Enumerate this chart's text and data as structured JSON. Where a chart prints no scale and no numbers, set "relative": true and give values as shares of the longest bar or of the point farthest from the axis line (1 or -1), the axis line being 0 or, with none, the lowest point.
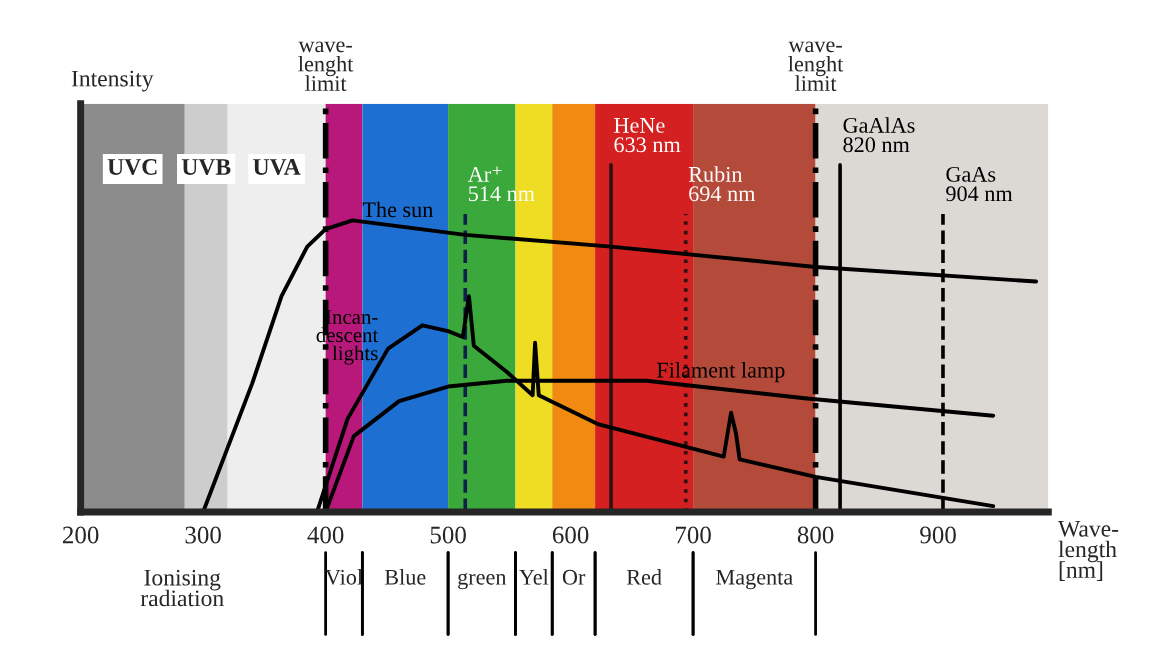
{
  "chart_data": {
    "type": "line",
    "relative": true,
    "xlabel": "Wave-\nlength\n[nm]",
    "xlim": [
      200,
      990
    ],
    "xticks": [
      200,
      300,
      400,
      500,
      600,
      700,
      800,
      900
    ],
    "series": [
      {
        "name": "The sun",
        "color": "#000000",
        "x": [
          300,
          340,
          364,
          385,
          400,
          422,
          514,
          633,
          800,
          980
        ],
        "values": [
          0,
          0.44,
          0.74,
          0.91,
          0.97,
          1.0,
          0.95,
          0.91,
          0.84,
          0.79
        ]
      },
      {
        "name": "Incan-\ndescent\nlights",
        "color": "#000000",
        "x": [
          393,
          418,
          451,
          479,
          500,
          512,
          517,
          521,
          548,
          569,
          571,
          574,
          623,
          725,
          731,
          735,
          738,
          800,
          945
        ],
        "values": [
          0,
          0.32,
          0.56,
          0.64,
          0.62,
          0.6,
          0.74,
          0.57,
          0.48,
          0.4,
          0.58,
          0.4,
          0.3,
          0.19,
          0.34,
          0.27,
          0.18,
          0.12,
          0.02
        ]
      },
      {
        "name": "Filament lamp",
        "color": "#000000",
        "x": [
          400,
          423,
          460,
          500,
          548,
          662,
          791,
          945
        ],
        "values": [
          0,
          0.26,
          0.38,
          0.43,
          0.45,
          0.45,
          0.39,
          0.33
        ]
      }
    ],
    "ref_lines": [
      {
        "axis": "x",
        "value": 400,
        "label": "wave-\nlenght\nlimit",
        "line_style": "dashdot",
        "color": "#000000"
      },
      {
        "axis": "x",
        "value": 514,
        "label": "Ar⁺\n514 nm",
        "line_style": "dashed",
        "color": "#10204a"
      },
      {
        "axis": "x",
        "value": 633,
        "label": "HeNe\n633 nm",
        "line_style": "solid",
        "color": "#301010"
      },
      {
        "axis": "x",
        "value": 694,
        "label": "Rubin\n694 nm",
        "line_style": "dotted",
        "color": "#301010"
      },
      {
        "axis": "x",
        "value": 800,
        "label": "wave-\nlenght\nlimit",
        "line_style": "dashdot",
        "color": "#000000"
      },
      {
        "axis": "x",
        "value": 820,
        "label": "GaAlAs\n820 nm",
        "line_style": "solid",
        "color": "#000000"
      },
      {
        "axis": "x",
        "value": 904,
        "label": "GaAs\n904 nm",
        "line_style": "dashed",
        "color": "#000000"
      }
    ],
    "bands": [
      {
        "axis": "x",
        "from": 200,
        "to": 285,
        "label": "UVC",
        "color": "#8c8c8c"
      },
      {
        "axis": "x",
        "from": 285,
        "to": 320,
        "label": "UVB",
        "color": "#cdcdcd"
      },
      {
        "axis": "x",
        "from": 320,
        "to": 400,
        "label": "UVA",
        "color": "#eeeeee"
      },
      {
        "axis": "x",
        "from": 400,
        "to": 430,
        "label": "Viol",
        "color": "#b8187a"
      },
      {
        "axis": "x",
        "from": 430,
        "to": 500,
        "label": "Blue",
        "color": "#1e6fd2"
      },
      {
        "axis": "x",
        "from": 500,
        "to": 555,
        "label": "green",
        "color": "#3aa83a"
      },
      {
        "axis": "x",
        "from": 555,
        "to": 585,
        "label": "Yel",
        "color": "#eedd22"
      },
      {
        "axis": "x",
        "from": 585,
        "to": 620,
        "label": "Or",
        "color": "#f08a10"
      },
      {
        "axis": "x",
        "from": 620,
        "to": 700,
        "label": "Red",
        "color": "#d42020"
      },
      {
        "axis": "x",
        "from": 700,
        "to": 800,
        "label": "Magenta",
        "color": "#b44a3a"
      },
      {
        "axis": "x",
        "from": 800,
        "to": 990,
        "color": "#dcd8d4"
      }
    ],
    "annotations": [
      "Intensity",
      "Ionising\nradiation"
    ],
    "grid": false
  }
}
